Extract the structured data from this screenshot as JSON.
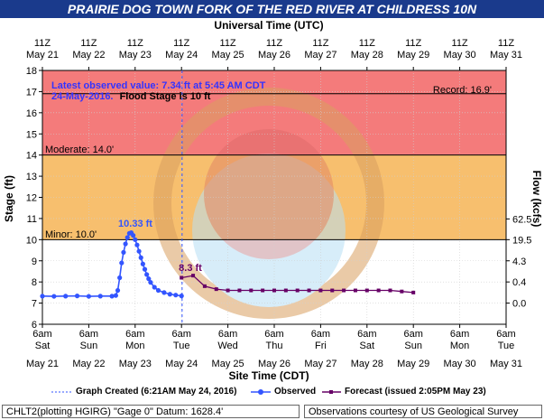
{
  "title": "PRAIRIE DOG TOWN FORK OF THE RED RIVER AT CHILDRESS 10N",
  "top_axis_title": "Universal Time (UTC)",
  "bottom_axis_title": "Site Time (CDT)",
  "left_axis_title": "Stage (ft)",
  "right_axis_title": "Flow (kcfs)",
  "annotation": {
    "line1": "Latest observed value: 7.34 ft at 5:45 AM CDT",
    "line2_date": "24-May-2016.",
    "line2_flood": "Flood Stage is 10 ft"
  },
  "thresholds": {
    "record": "Record: 16.9'",
    "moderate": "Moderate: 14.0'",
    "minor": "Minor: 10.0'"
  },
  "peak_labels": {
    "observed": "10.33 ft",
    "forecast": "8.3 ft"
  },
  "legend": {
    "created": "Graph Created (6:21AM May 24, 2016)",
    "observed": "Observed",
    "forecast": "Forecast (issued 2:05PM May 23)"
  },
  "footer": {
    "left": "CHLT2(plotting HGIRG) \"Gage 0\" Datum: 1628.4'",
    "right": "Observations courtesy of US Geological Survey"
  },
  "colors": {
    "title_bar": "#1a3a8c",
    "record_band": "#f47b7b",
    "moderate_band": "#f47b7b",
    "flood_band": "#f7bf6e",
    "observed": "#3355ff",
    "forecast": "#660066",
    "annotation_text": "#3333ff"
  },
  "chart_data": {
    "type": "line",
    "x_unit": "hours since May 21 6am CDT",
    "ylim": [
      6,
      18
    ],
    "yticks": [
      6,
      7,
      8,
      9,
      10,
      11,
      12,
      13,
      14,
      15,
      16,
      17,
      18
    ],
    "xlim": [
      0,
      240
    ],
    "bottom_ticks": [
      {
        "time": "6am",
        "day": "Sat",
        "date": "May 21"
      },
      {
        "time": "6am",
        "day": "Sun",
        "date": "May 22"
      },
      {
        "time": "6am",
        "day": "Mon",
        "date": "May 23"
      },
      {
        "time": "6am",
        "day": "Tue",
        "date": "May 24"
      },
      {
        "time": "6am",
        "day": "Wed",
        "date": "May 25"
      },
      {
        "time": "6am",
        "day": "Thu",
        "date": "May 26"
      },
      {
        "time": "6am",
        "day": "Fri",
        "date": "May 27"
      },
      {
        "time": "6am",
        "day": "Sat",
        "date": "May 28"
      },
      {
        "time": "6am",
        "day": "Sun",
        "date": "May 29"
      },
      {
        "time": "6am",
        "day": "Mon",
        "date": "May 30"
      },
      {
        "time": "6am",
        "day": "Tue",
        "date": "May 31"
      }
    ],
    "top_ticks": [
      {
        "time": "11Z",
        "date": "May 21"
      },
      {
        "time": "11Z",
        "date": "May 22"
      },
      {
        "time": "11Z",
        "date": "May 23"
      },
      {
        "time": "11Z",
        "date": "May 24"
      },
      {
        "time": "11Z",
        "date": "May 25"
      },
      {
        "time": "11Z",
        "date": "May 26"
      },
      {
        "time": "11Z",
        "date": "May 27"
      },
      {
        "time": "11Z",
        "date": "May 28"
      },
      {
        "time": "11Z",
        "date": "May 29"
      },
      {
        "time": "11Z",
        "date": "May 30"
      },
      {
        "time": "11Z",
        "date": "May 31"
      }
    ],
    "flow_ticks": [
      {
        "stage": 10.98,
        "label": "62.5"
      },
      {
        "stage": 10.0,
        "label": "19.5"
      },
      {
        "stage": 9.0,
        "label": "4.3"
      },
      {
        "stage": 8.0,
        "label": "0.4"
      },
      {
        "stage": 7.0,
        "label": "0.0"
      }
    ],
    "thresholds": {
      "record": 16.9,
      "moderate": 14.0,
      "minor": 10.0
    },
    "created_time": 72.3,
    "series": [
      {
        "name": "Observed",
        "points": [
          [
            0,
            7.33
          ],
          [
            6,
            7.32
          ],
          [
            12,
            7.33
          ],
          [
            18,
            7.34
          ],
          [
            24,
            7.32
          ],
          [
            30,
            7.33
          ],
          [
            36,
            7.33
          ],
          [
            38,
            7.36
          ],
          [
            39,
            7.6
          ],
          [
            40,
            8.2
          ],
          [
            41,
            8.9
          ],
          [
            42,
            9.4
          ],
          [
            43,
            9.8
          ],
          [
            44,
            10.1
          ],
          [
            45,
            10.3
          ],
          [
            46,
            10.33
          ],
          [
            47,
            10.2
          ],
          [
            48,
            10.0
          ],
          [
            49,
            9.75
          ],
          [
            50,
            9.45
          ],
          [
            51,
            9.15
          ],
          [
            52,
            8.85
          ],
          [
            53,
            8.6
          ],
          [
            54,
            8.35
          ],
          [
            55,
            8.15
          ],
          [
            56,
            7.98
          ],
          [
            58,
            7.75
          ],
          [
            60,
            7.6
          ],
          [
            63,
            7.5
          ],
          [
            66,
            7.42
          ],
          [
            69,
            7.38
          ],
          [
            72,
            7.34
          ]
        ]
      },
      {
        "name": "Forecast",
        "points": [
          [
            72,
            8.2
          ],
          [
            78,
            8.3
          ],
          [
            84,
            7.8
          ],
          [
            90,
            7.66
          ],
          [
            96,
            7.6
          ],
          [
            102,
            7.6
          ],
          [
            108,
            7.6
          ],
          [
            114,
            7.6
          ],
          [
            120,
            7.6
          ],
          [
            126,
            7.6
          ],
          [
            132,
            7.6
          ],
          [
            138,
            7.6
          ],
          [
            144,
            7.6
          ],
          [
            150,
            7.6
          ],
          [
            156,
            7.6
          ],
          [
            162,
            7.6
          ],
          [
            168,
            7.6
          ],
          [
            174,
            7.6
          ],
          [
            180,
            7.6
          ],
          [
            186,
            7.55
          ],
          [
            192,
            7.5
          ]
        ]
      }
    ]
  }
}
